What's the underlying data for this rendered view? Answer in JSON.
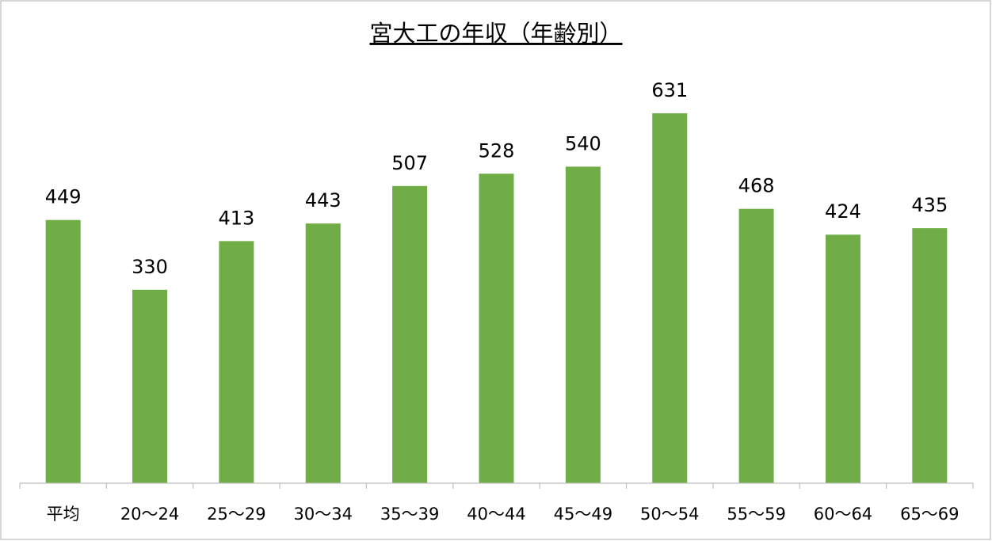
{
  "chart_data": {
    "type": "bar",
    "title": "宮大工の年収（年齢別）",
    "categories": [
      "平均",
      "20〜24",
      "25〜29",
      "30〜34",
      "35〜39",
      "40〜44",
      "45〜49",
      "50〜54",
      "55〜59",
      "60〜64",
      "65〜69"
    ],
    "values": [
      449,
      330,
      413,
      443,
      507,
      528,
      540,
      631,
      468,
      424,
      435
    ],
    "color": "#70ad47",
    "ylim": [
      0,
      700
    ]
  }
}
